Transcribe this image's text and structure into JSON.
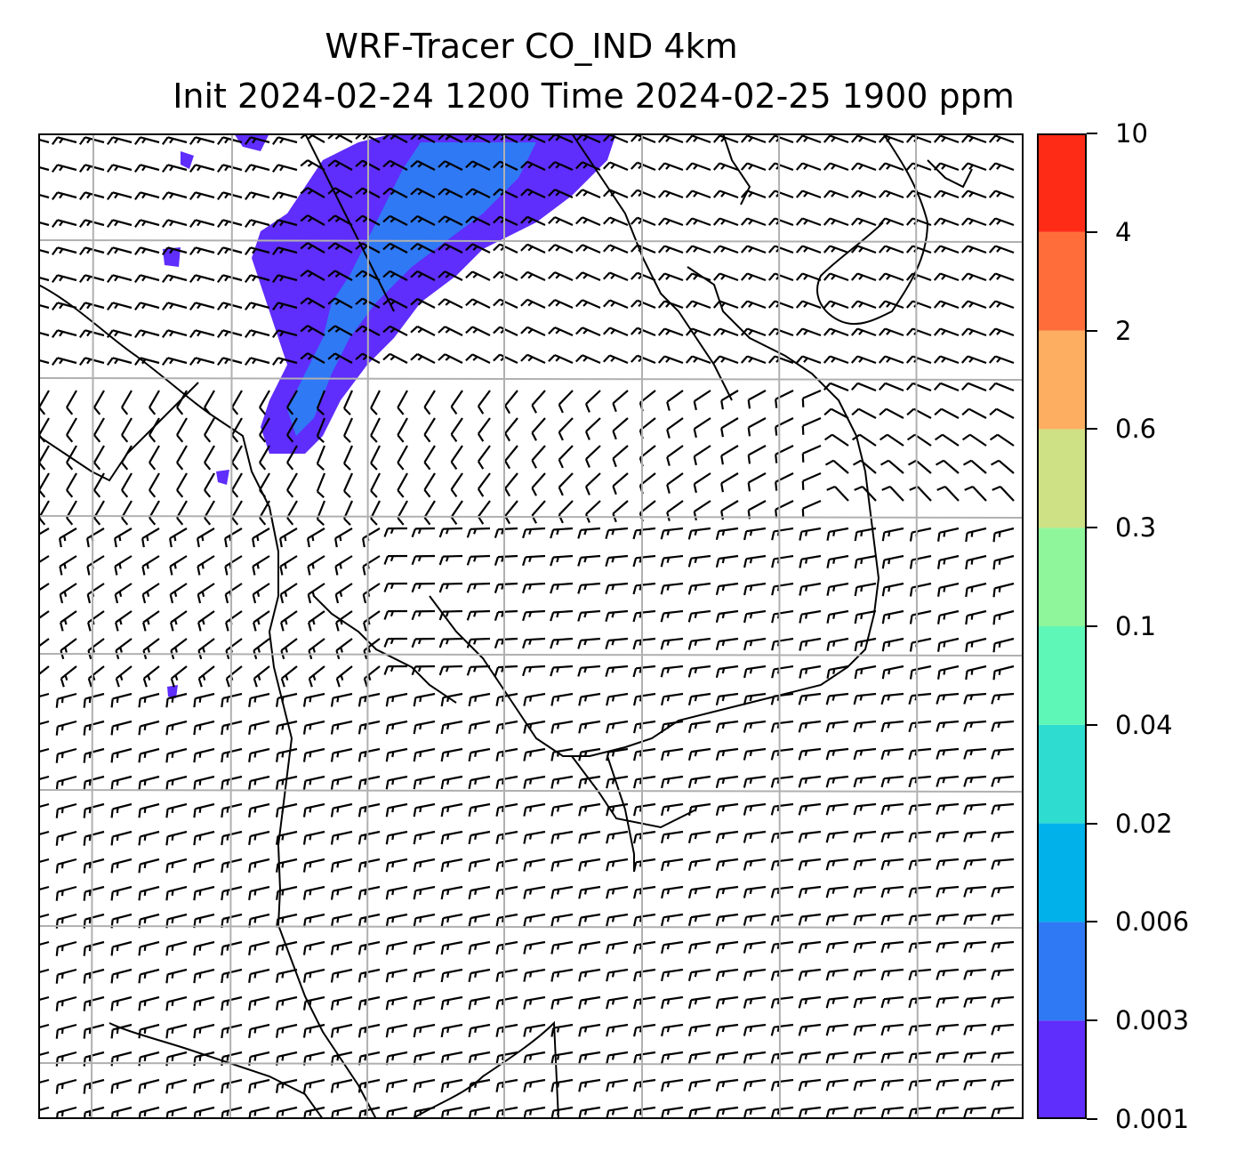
{
  "title": {
    "line1": "WRF-Tracer CO_IND 4km",
    "line2": "Init 2024-02-24 1200 Time 2024-02-25 1900 ppm"
  },
  "colorbar": {
    "levels": [
      "0.001",
      "0.003",
      "0.006",
      "0.02",
      "0.04",
      "0.1",
      "0.3",
      "0.6",
      "2",
      "4",
      "10"
    ],
    "colors": [
      "#5f2dfc",
      "#3079f4",
      "#00b1ea",
      "#2edcd0",
      "#5ef7b8",
      "#8ff69b",
      "#cfe185",
      "#fdae61",
      "#ff6e3a",
      "#fe2c16"
    ]
  },
  "map": {
    "projection": "Lambert conformal",
    "gridlines": true,
    "wind_barbs": true,
    "coastlines_and_borders": true
  }
}
